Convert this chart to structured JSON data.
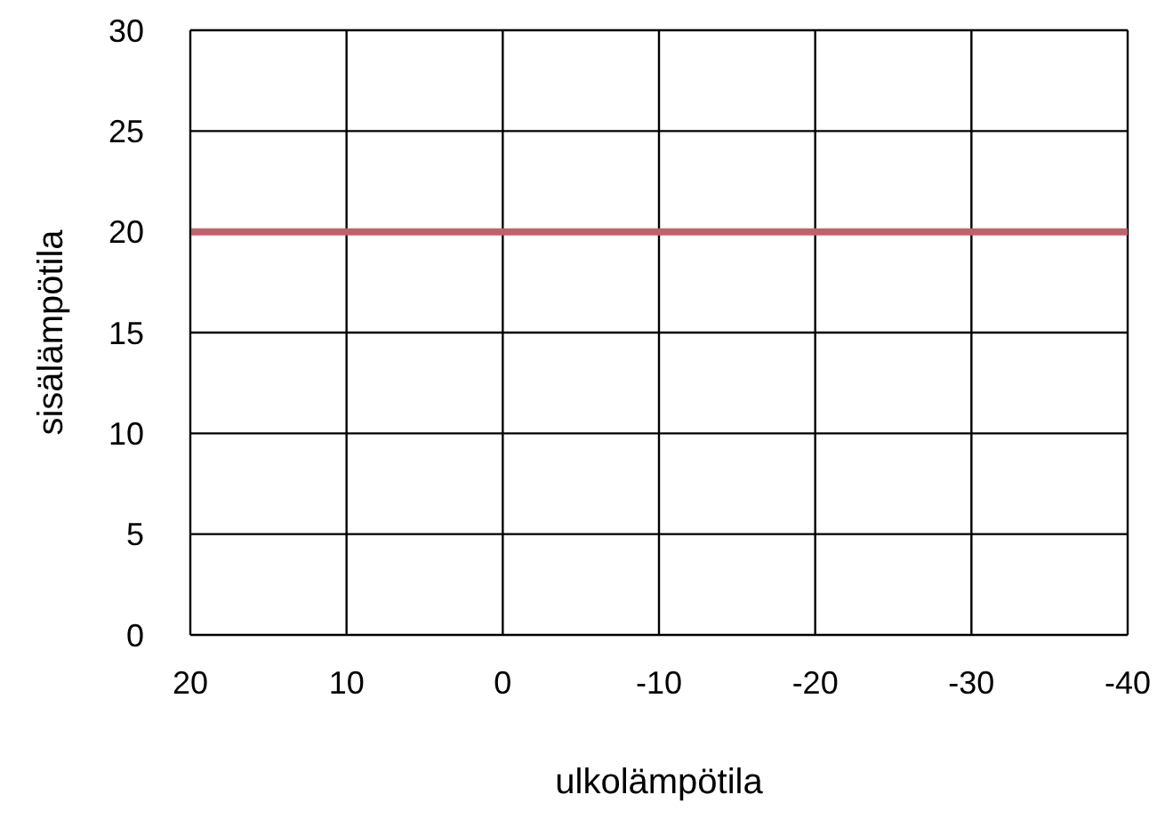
{
  "chart_data": {
    "type": "line",
    "xlabel": "ulkolämpötila",
    "ylabel": "sisälämpötila",
    "x": [
      20,
      -40
    ],
    "series": [
      {
        "color": "#c0626b",
        "values": [
          20,
          20
        ]
      }
    ],
    "xlim": [
      20,
      -40
    ],
    "xticks": [
      20,
      10,
      0,
      -10,
      -20,
      -30,
      -40
    ],
    "ylim": [
      0,
      30
    ],
    "yticks": [
      0,
      5,
      10,
      15,
      20,
      25,
      30
    ],
    "grid": true,
    "marker": "none",
    "line_style": "solid"
  }
}
